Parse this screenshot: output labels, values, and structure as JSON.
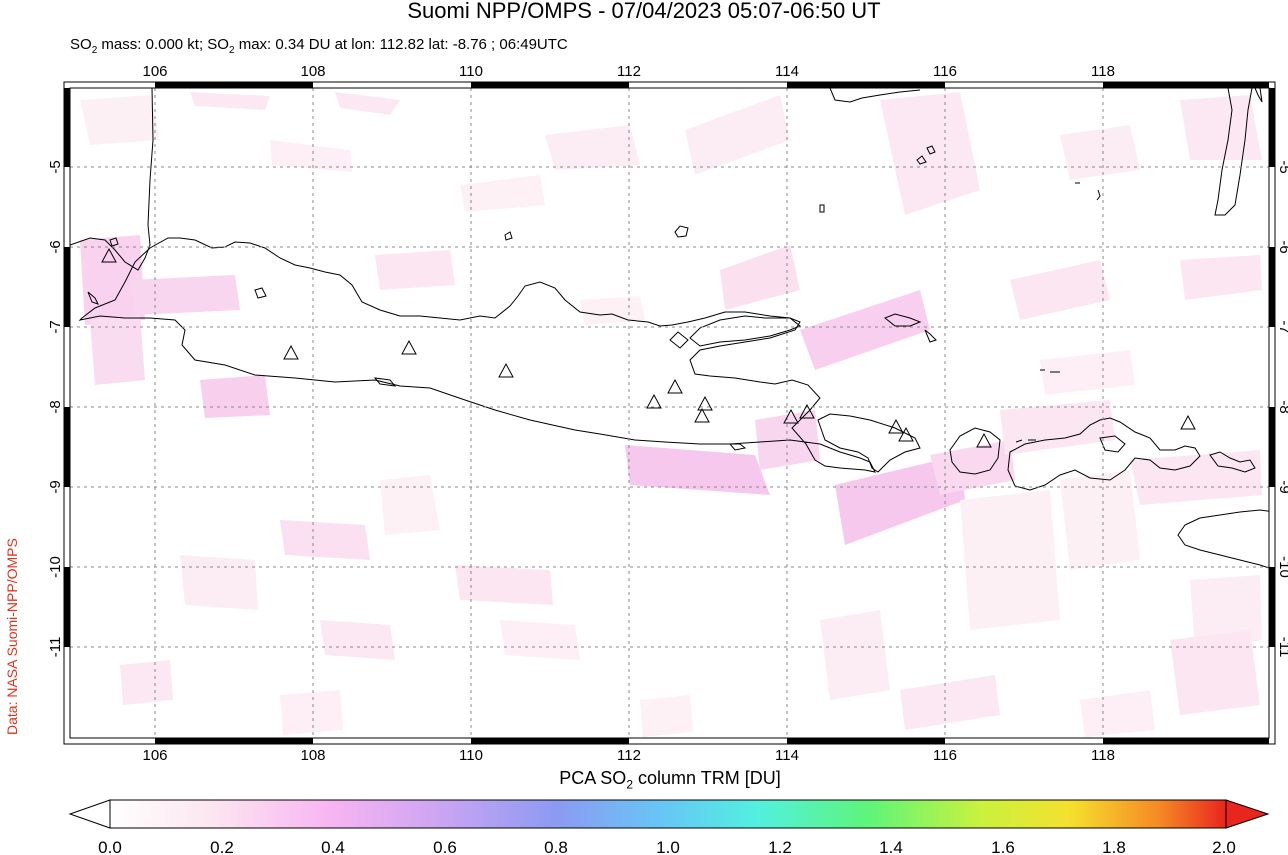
{
  "title": "Suomi NPP/OMPS - 07/04/2023 05:07-06:50 UT",
  "subtitle": {
    "mass_prefix": "SO",
    "mass_sub": "2",
    "mass_text": " mass: 0.000 kt; SO",
    "max_sub": "2",
    "max_text": " max: 0.34 DU at lon: 112.82 lat: -8.76 ; 06:49UTC"
  },
  "side_credit": "Data: NASA Suomi-NPP/OMPS",
  "colorbar": {
    "title_prefix": "PCA SO",
    "title_sub": "2",
    "title_suffix": " column TRM [DU]",
    "ticks": [
      "0.0",
      "0.2",
      "0.4",
      "0.6",
      "0.8",
      "1.0",
      "1.2",
      "1.4",
      "1.6",
      "1.8",
      "2.0"
    ],
    "colors": [
      "#ffffff",
      "#fce6f0",
      "#f7b4f2",
      "#c9a4f2",
      "#8c9af2",
      "#66c8f5",
      "#52f0e0",
      "#5ef57a",
      "#c9f23e",
      "#f5e02e",
      "#f58a24",
      "#e8261e"
    ]
  },
  "map": {
    "lon_ticks": [
      "106",
      "108",
      "110",
      "112",
      "114",
      "116",
      "118"
    ],
    "lat_ticks": [
      "-5",
      "-6",
      "-7",
      "-8",
      "-9",
      "-10",
      "-11"
    ],
    "volcano_symbol": "triangle",
    "background_color": "#ffffff",
    "so2_low_color": "#fce8f2",
    "so2_mid_color": "#f8c8ee"
  }
}
